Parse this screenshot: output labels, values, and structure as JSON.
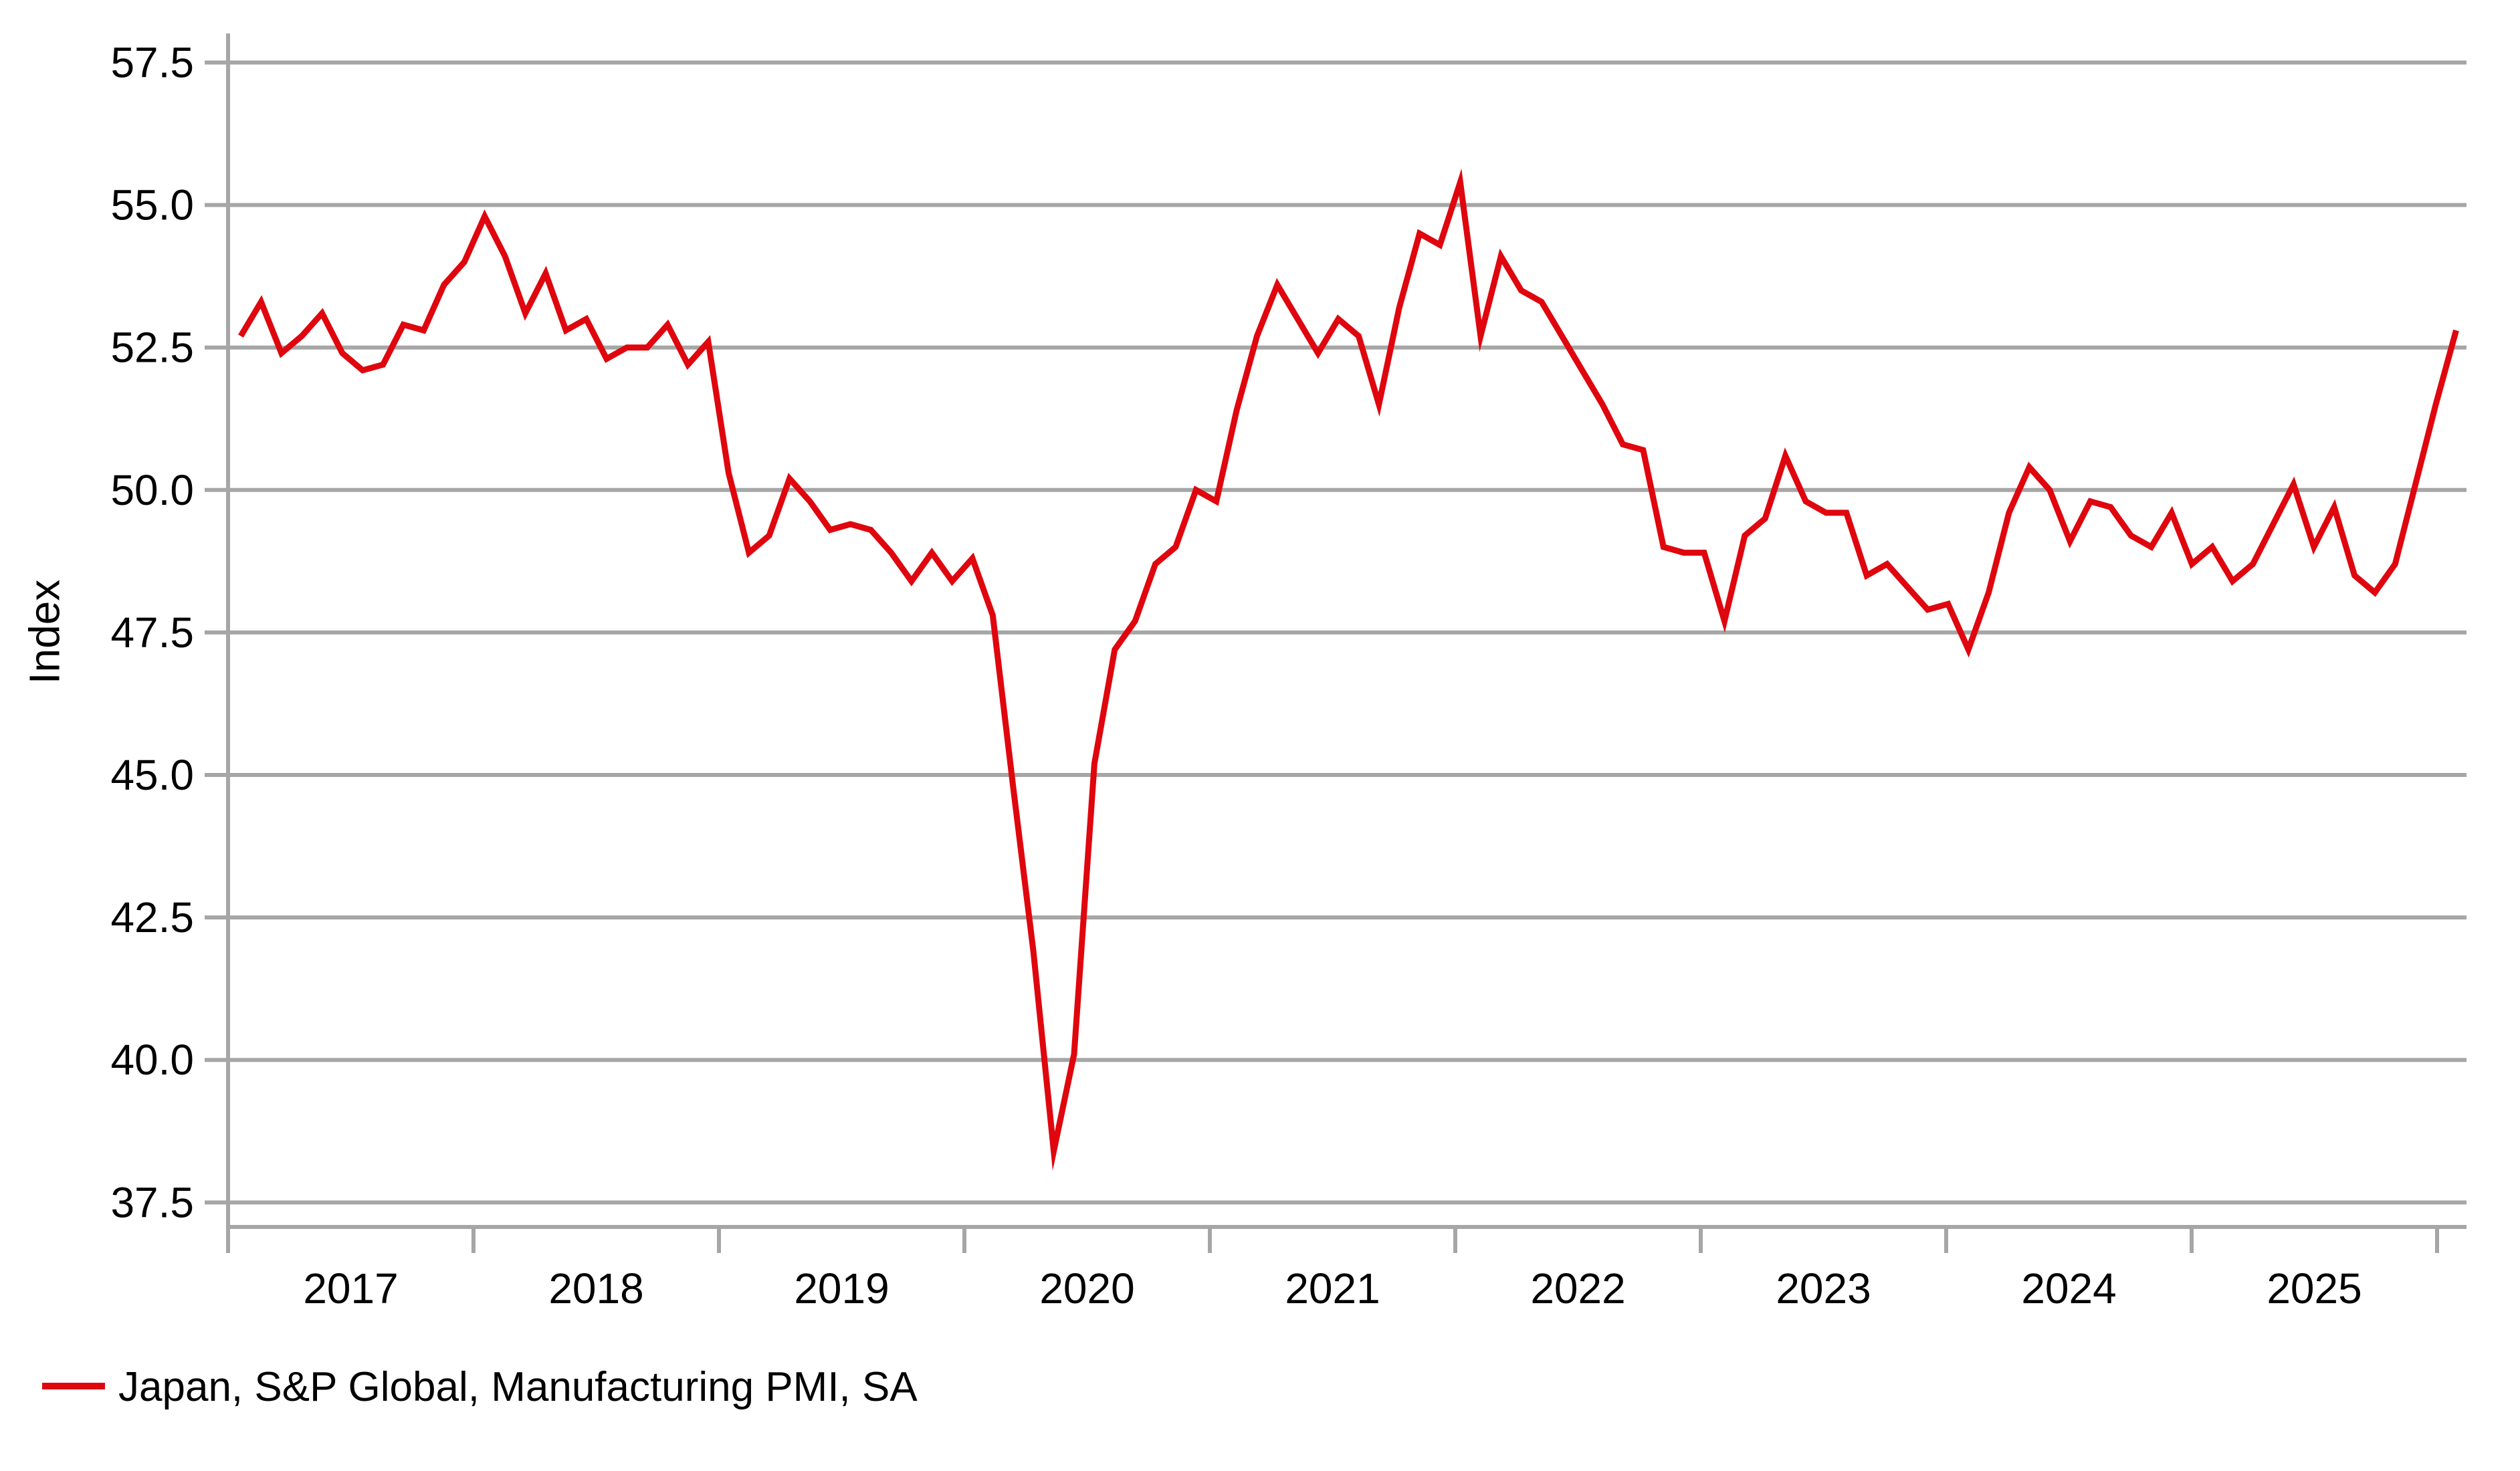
{
  "page": {
    "background": "#ffffff"
  },
  "colors": {
    "series_red": "#DF060E",
    "grid_gray": "#A6A6A6",
    "text_black": "#000000"
  },
  "chart_data": {
    "type": "line",
    "title": "",
    "xlabel": "",
    "ylabel": "Index",
    "grid": "horizontal",
    "legend_position": "bottom-left",
    "ylim": [
      37.07,
      58.01
    ],
    "y_tick_labels": [
      "57.5",
      "55.0",
      "52.5",
      "50.0",
      "47.5",
      "45.0",
      "42.5",
      "40.0",
      "37.5"
    ],
    "x_tick_labels": [
      "2017",
      "2018",
      "2019",
      "2020",
      "2021",
      "2022",
      "2023",
      "2024",
      "2025"
    ],
    "series": [
      {
        "name": "Japan, S&P Global, Manufacturing PMI, SA",
        "color": "#DF060E",
        "frequency": "monthly",
        "start": "2017-01",
        "values": [
          52.7,
          53.3,
          52.4,
          52.7,
          53.1,
          52.4,
          52.1,
          52.2,
          52.9,
          52.8,
          53.6,
          54.0,
          54.8,
          54.1,
          53.1,
          53.8,
          52.8,
          53.0,
          52.3,
          52.5,
          52.5,
          52.9,
          52.2,
          52.6,
          50.3,
          48.9,
          49.2,
          50.2,
          49.8,
          49.3,
          49.4,
          49.3,
          48.9,
          48.4,
          48.9,
          48.4,
          48.8,
          47.8,
          44.8,
          41.9,
          38.4,
          40.1,
          45.2,
          47.2,
          47.7,
          48.7,
          49.0,
          50.0,
          49.8,
          51.4,
          52.7,
          53.6,
          53.0,
          52.4,
          53.0,
          52.7,
          51.5,
          53.2,
          54.5,
          54.3,
          55.4,
          52.7,
          54.1,
          53.5,
          53.3,
          52.7,
          52.1,
          51.5,
          50.8,
          50.7,
          49.0,
          48.9,
          48.9,
          47.7,
          49.2,
          49.5,
          50.6,
          49.8,
          49.6,
          49.6,
          48.5,
          48.7,
          48.3,
          47.9,
          48.0,
          47.2,
          48.2,
          49.6,
          50.4,
          50.0,
          49.1,
          49.8,
          49.7,
          49.2,
          49.0,
          49.6,
          48.7,
          49.0,
          48.4,
          48.7,
          49.4,
          50.1,
          49.0,
          49.7,
          48.5,
          48.2,
          48.7,
          50.1,
          51.5,
          52.8
        ]
      }
    ]
  }
}
